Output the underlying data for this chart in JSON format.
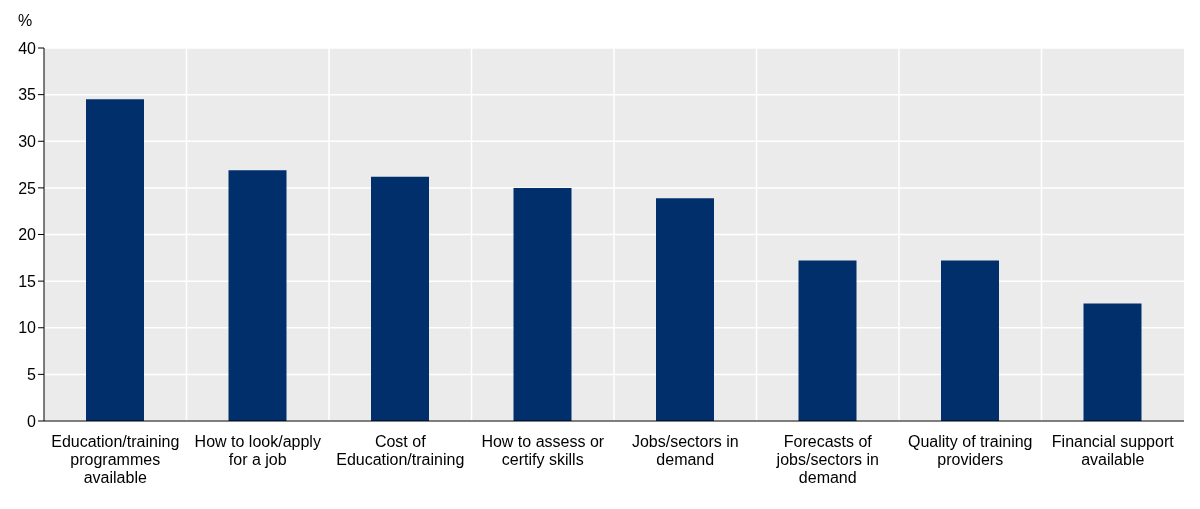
{
  "chart_data": {
    "type": "bar",
    "ylabel": "%",
    "categories": [
      "Education/training programmes available",
      "How to look/apply for a job",
      "Cost of Education/training",
      "How to assess or certify skills",
      "Jobs/sectors in demand",
      "Forecasts of jobs/sectors in demand",
      "Quality of training providers",
      "Financial support available"
    ],
    "values": [
      34.5,
      26.9,
      26.2,
      25.0,
      23.9,
      17.2,
      17.2,
      12.6
    ],
    "color": "#002f6c",
    "ylim": [
      0,
      40
    ],
    "yticks": [
      0,
      5,
      10,
      15,
      20,
      25,
      30,
      35,
      40
    ],
    "grid": true
  }
}
